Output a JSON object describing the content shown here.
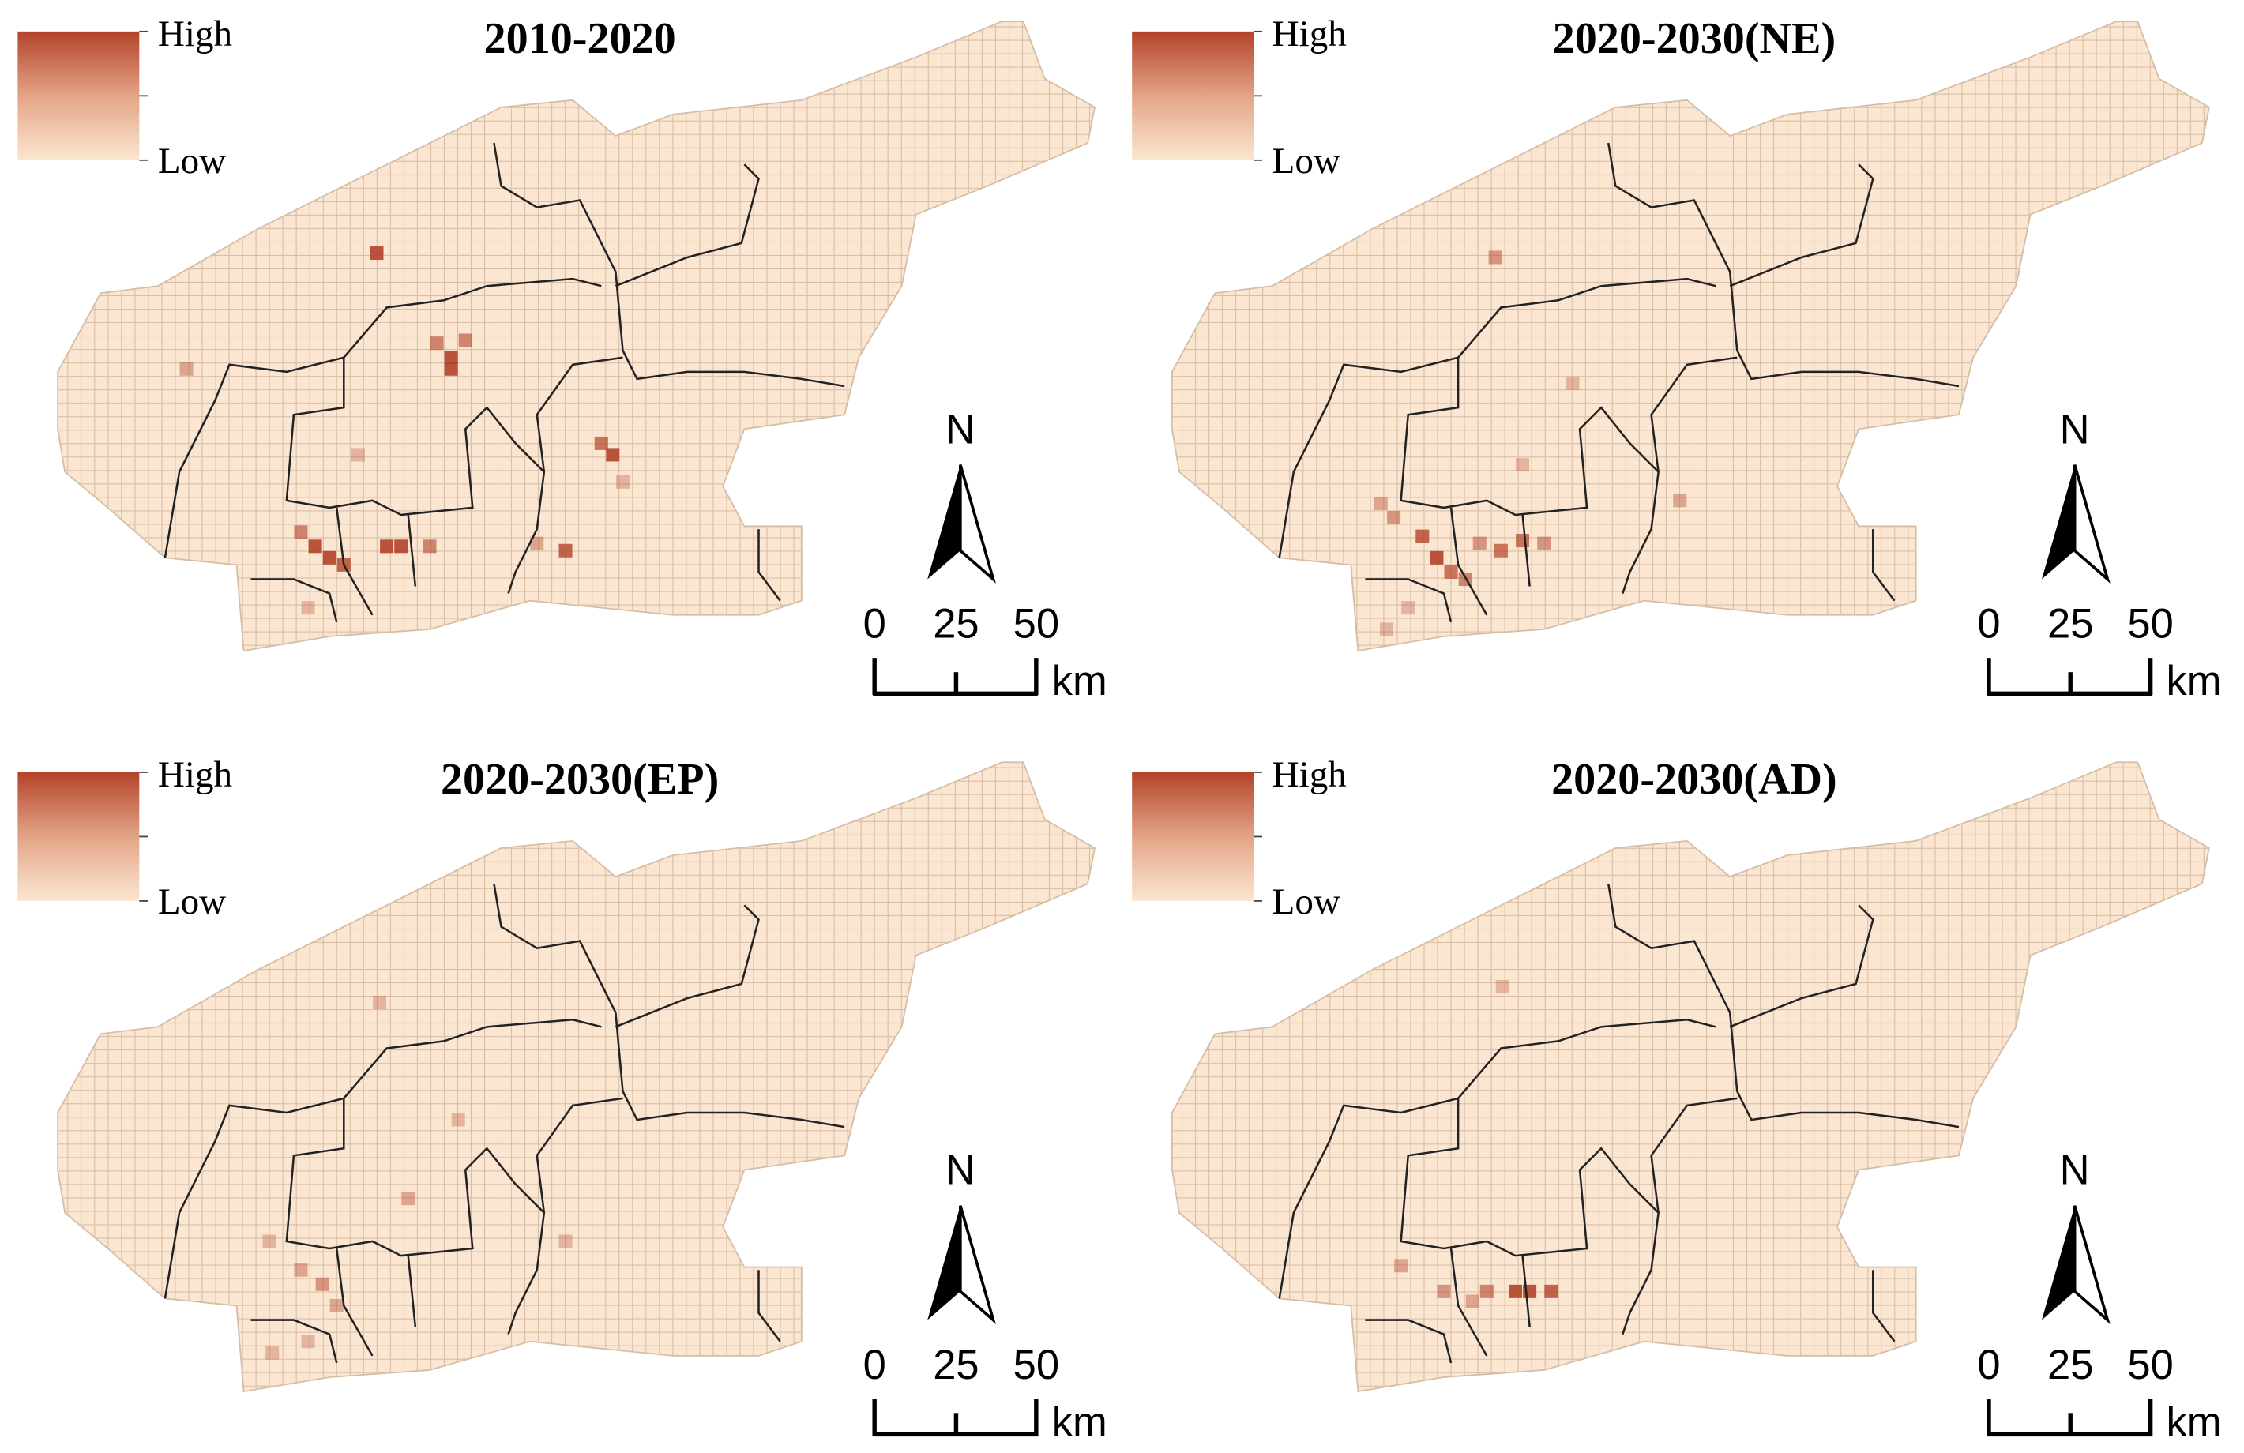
{
  "panels": [
    {
      "title": "2010-2020",
      "legend": {
        "high": "High",
        "low": "Low"
      },
      "north": "N",
      "scale": {
        "ticks": [
          0,
          25,
          50
        ],
        "unit": "km"
      }
    },
    {
      "title": "2020-2030(NE)",
      "legend": {
        "high": "High",
        "low": "Low"
      },
      "north": "N",
      "scale": {
        "ticks": [
          0,
          25,
          50
        ],
        "unit": "km"
      }
    },
    {
      "title": "2020-2030(EP)",
      "legend": {
        "high": "High",
        "low": "Low"
      },
      "north": "N",
      "scale": {
        "ticks": [
          0,
          25,
          50
        ],
        "unit": "km"
      }
    },
    {
      "title": "2020-2030(AD)",
      "legend": {
        "high": "High",
        "low": "Low"
      },
      "north": "N",
      "scale": {
        "ticks": [
          0,
          25,
          50
        ],
        "unit": "km"
      }
    }
  ]
}
